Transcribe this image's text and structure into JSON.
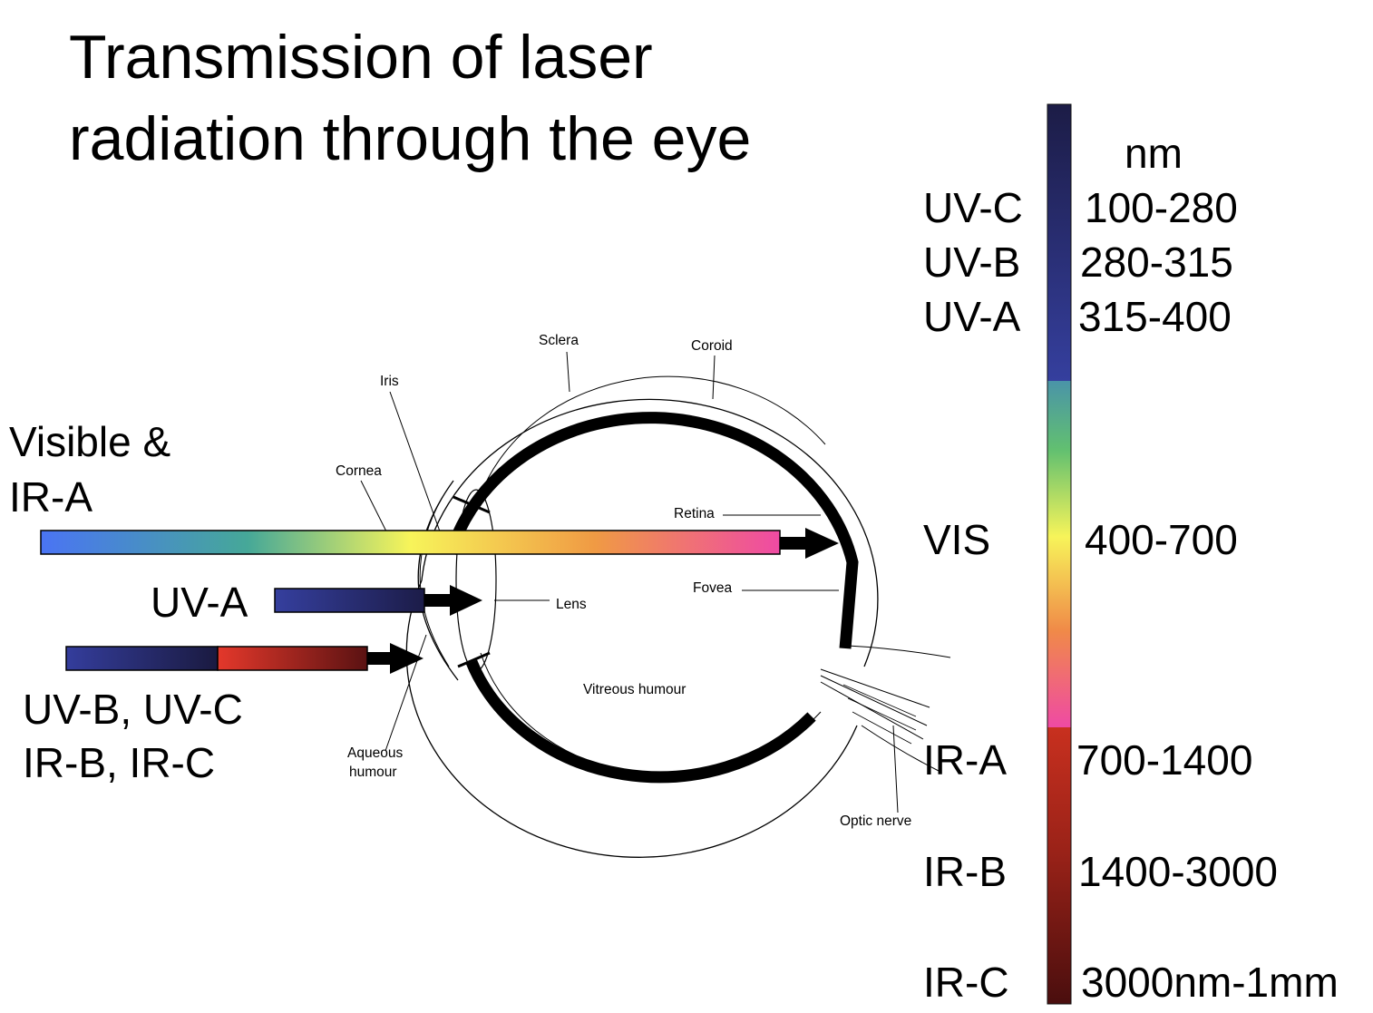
{
  "title": {
    "line1": "Transmission of laser",
    "line2": "radiation through the eye"
  },
  "eye_labels": {
    "sclera": "Sclera",
    "coroid": "Coroid",
    "iris": "Iris",
    "cornea": "Cornea",
    "retina": "Retina",
    "fovea": "Fovea",
    "lens": "Lens",
    "vitreous": "Vitreous humour",
    "aqueous1": "Aqueous",
    "aqueous2": "humour",
    "optic_nerve": "Optic nerve"
  },
  "beams": {
    "visible_ira_1": "Visible &",
    "visible_ira_2": "IR-A",
    "uva": "UV-A",
    "uvb_uvc": "UV-B, UV-C",
    "irb_irc": "IR-B, IR-C"
  },
  "spectrum": {
    "unit": "nm",
    "bands": [
      {
        "name": "UV-C",
        "range": "100-280"
      },
      {
        "name": "UV-B",
        "range": "280-315"
      },
      {
        "name": "UV-A",
        "range": "315-400"
      },
      {
        "name": "VIS",
        "range": "400-700"
      },
      {
        "name": "IR-A",
        "range": "700-1400"
      },
      {
        "name": "IR-B",
        "range": "1400-3000"
      },
      {
        "name": "IR-C",
        "range": "3000nm-1mm"
      }
    ]
  },
  "colors": {
    "uv_dark": "#1c1c48",
    "uv_blue": "#343d9c",
    "vis_start": "#4a74f4",
    "vis_yellow": "#f7f45a",
    "vis_pink": "#ef4aa4",
    "ir_red": "#e0372a",
    "ir_dark": "#4e0f0f"
  }
}
